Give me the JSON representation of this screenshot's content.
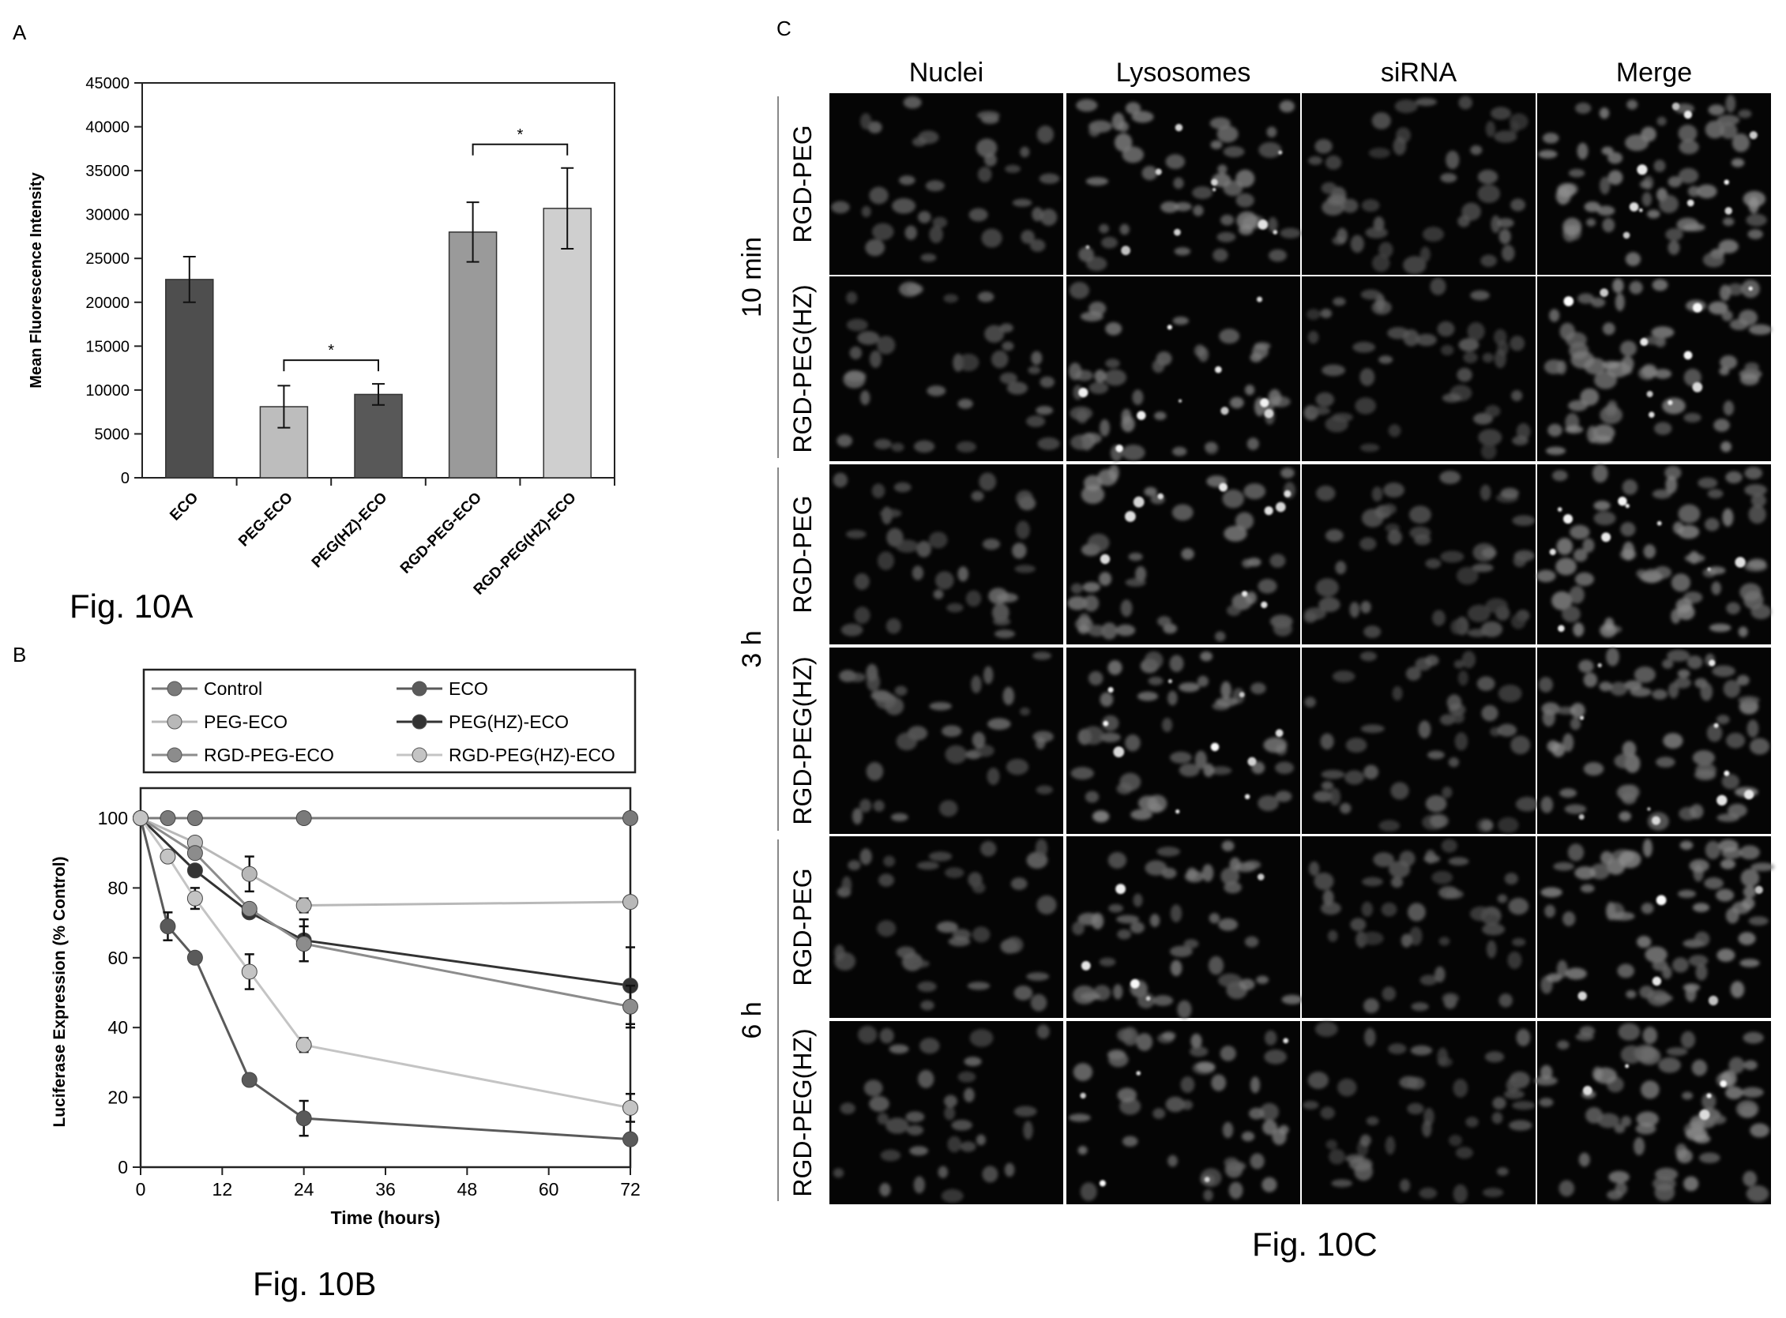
{
  "panelA": {
    "letter": "A",
    "caption": "Fig. 10A",
    "chart_data": {
      "type": "bar",
      "ylabel": "Mean Fluorescence Intensity",
      "xlabel": "",
      "ylim": [
        0,
        45000
      ],
      "yticks": [
        0,
        5000,
        10000,
        15000,
        20000,
        25000,
        30000,
        35000,
        40000,
        45000
      ],
      "categories": [
        "ECO",
        "PEG-ECO",
        "PEG(HZ)-ECO",
        "RGD-PEG-ECO",
        "RGD-PEG(HZ)-ECO"
      ],
      "values": [
        22600,
        8100,
        9500,
        28000,
        30700
      ],
      "errors": [
        2600,
        2400,
        1200,
        3400,
        4600
      ],
      "colors": [
        "#4e4e4e",
        "#bdbdbd",
        "#585858",
        "#9a9a9a",
        "#cfcfcf"
      ],
      "significance": [
        {
          "from": 1,
          "to": 2,
          "label": "*"
        },
        {
          "from": 3,
          "to": 4,
          "label": "*"
        }
      ]
    }
  },
  "panelB": {
    "letter": "B",
    "caption": "Fig. 10B",
    "chart_data": {
      "type": "line",
      "xlabel": "Time (hours)",
      "ylabel": "Luciferase Expression (% Control)",
      "xlim": [
        0,
        72
      ],
      "ylim": [
        0,
        100
      ],
      "xticks": [
        0,
        12,
        24,
        36,
        48,
        60,
        72
      ],
      "yticks": [
        0,
        20,
        40,
        60,
        80,
        100
      ],
      "legend_position": "top",
      "series": [
        {
          "name": "Control",
          "color": "#7a7a7a",
          "x": [
            0,
            4,
            8,
            24,
            72
          ],
          "y": [
            100,
            100,
            100,
            100,
            100
          ],
          "err": [
            0,
            0,
            0,
            0,
            0
          ]
        },
        {
          "name": "ECO",
          "color": "#5a5a5a",
          "x": [
            0,
            4,
            8,
            16,
            24,
            72
          ],
          "y": [
            100,
            69,
            60,
            25,
            14,
            8
          ],
          "err": [
            0,
            4,
            0,
            0,
            5,
            0
          ]
        },
        {
          "name": "PEG-ECO",
          "color": "#b8b8b8",
          "x": [
            0,
            8,
            16,
            24,
            72
          ],
          "y": [
            100,
            93,
            84,
            75,
            76
          ],
          "err": [
            0,
            0,
            5,
            2,
            0
          ]
        },
        {
          "name": "PEG(HZ)-ECO",
          "color": "#333333",
          "x": [
            0,
            8,
            16,
            24,
            72
          ],
          "y": [
            100,
            85,
            73,
            65,
            52
          ],
          "err": [
            0,
            0,
            0,
            6,
            11
          ]
        },
        {
          "name": "RGD-PEG-ECO",
          "color": "#8c8c8c",
          "x": [
            0,
            8,
            16,
            24,
            72
          ],
          "y": [
            100,
            90,
            74,
            64,
            46
          ],
          "err": [
            0,
            0,
            0,
            5,
            6
          ]
        },
        {
          "name": "RGD-PEG(HZ)-ECO",
          "color": "#c4c4c4",
          "x": [
            0,
            4,
            8,
            16,
            24,
            72
          ],
          "y": [
            100,
            89,
            77,
            56,
            35,
            17
          ],
          "err": [
            0,
            0,
            3,
            5,
            2,
            4
          ]
        }
      ]
    }
  },
  "panelC": {
    "letter": "C",
    "caption": "Fig. 10C",
    "columns": [
      "Nuclei",
      "Lysosomes",
      "siRNA",
      "Merge"
    ],
    "groups": [
      {
        "time": "10 min",
        "rows": [
          "RGD-PEG",
          "RGD-PEG(HZ)"
        ]
      },
      {
        "time": "3 h",
        "rows": [
          "RGD-PEG",
          "RGD-PEG(HZ)"
        ]
      },
      {
        "time": "6 h",
        "rows": [
          "RGD-PEG",
          "RGD-PEG(HZ)"
        ]
      }
    ]
  }
}
